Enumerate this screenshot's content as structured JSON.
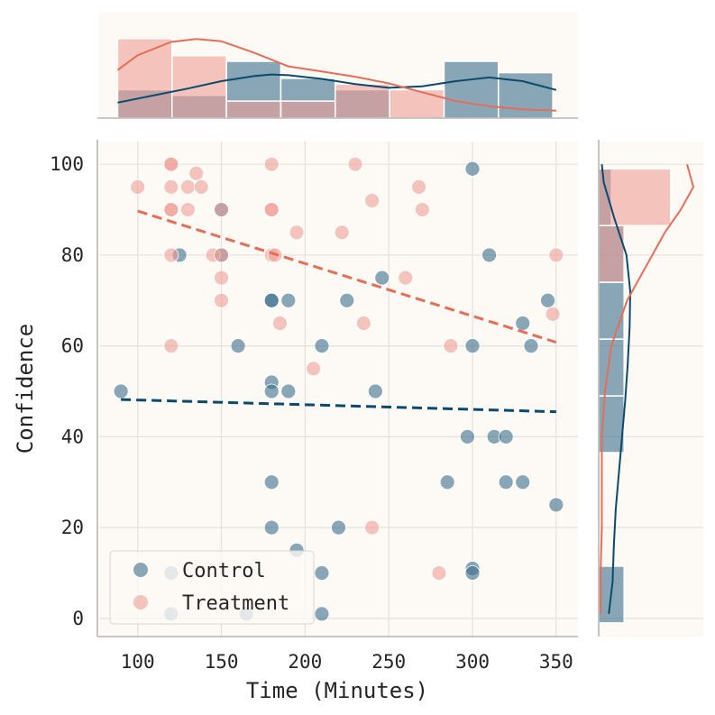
{
  "chart_data": {
    "type": "scatter",
    "subtype": "jointplot",
    "xlabel": "Time (Minutes)",
    "ylabel": "Confidence",
    "xlim": [
      77,
      363
    ],
    "ylim": [
      -4,
      105
    ],
    "x_ticks": [
      100,
      150,
      200,
      250,
      300,
      350
    ],
    "y_ticks": [
      0,
      20,
      40,
      60,
      80,
      100
    ],
    "grid": true,
    "legend_position": "lower-left",
    "colors": {
      "background": "#fdf9f5",
      "grid": "#e4e1de",
      "spine": "#b5b5b5"
    },
    "series": [
      {
        "name": "Control",
        "color": "#3c6e8c",
        "line_color": "#0b4a6d",
        "points": [
          [
            90,
            50
          ],
          [
            120,
            10
          ],
          [
            120,
            1
          ],
          [
            125,
            80
          ],
          [
            150,
            90
          ],
          [
            150,
            80
          ],
          [
            160,
            60
          ],
          [
            165,
            1
          ],
          [
            180,
            70
          ],
          [
            180,
            70
          ],
          [
            180,
            52
          ],
          [
            180,
            50
          ],
          [
            180,
            30
          ],
          [
            180,
            20
          ],
          [
            190,
            70
          ],
          [
            190,
            50
          ],
          [
            195,
            15
          ],
          [
            210,
            60
          ],
          [
            210,
            10
          ],
          [
            210,
            1
          ],
          [
            220,
            20
          ],
          [
            225,
            70
          ],
          [
            242,
            50
          ],
          [
            246,
            75
          ],
          [
            285,
            30
          ],
          [
            297,
            40
          ],
          [
            300,
            99
          ],
          [
            300,
            60
          ],
          [
            300,
            11
          ],
          [
            300,
            10
          ],
          [
            310,
            80
          ],
          [
            313,
            40
          ],
          [
            320,
            40
          ],
          [
            320,
            30
          ],
          [
            330,
            65
          ],
          [
            330,
            30
          ],
          [
            335,
            60
          ],
          [
            345,
            70
          ],
          [
            350,
            25
          ]
        ],
        "trend": {
          "x": [
            90,
            350
          ],
          "y": [
            48.2,
            45.5
          ]
        },
        "top_hist": {
          "edges": [
            88,
            120.5,
            153,
            185.5,
            218,
            250.5,
            283,
            315.5,
            348
          ],
          "counts": [
            5,
            4,
            10,
            7,
            5,
            0,
            10,
            8
          ]
        },
        "top_kde": {
          "x": [
            88,
            110,
            130,
            150,
            170,
            180,
            190,
            210,
            230,
            250,
            270,
            290,
            310,
            330,
            350
          ],
          "y": [
            2.1,
            3.1,
            4.0,
            5.0,
            5.7,
            5.9,
            5.8,
            5.3,
            4.6,
            4.1,
            4.3,
            5.0,
            5.5,
            5.0,
            3.8
          ]
        },
        "right_hist": {
          "edges": [
            -1,
            11.5,
            24,
            36.5,
            49,
            61.5,
            74,
            86.5,
            99
          ],
          "counts": [
            6,
            0,
            0,
            6,
            6,
            6,
            6,
            3
          ]
        },
        "right_kde": {
          "y": [
            1,
            8,
            16,
            24,
            32,
            40,
            48,
            56,
            64,
            72,
            80,
            88,
            96,
            100
          ],
          "x": [
            1.6,
            2.2,
            2.4,
            2.7,
            3.2,
            3.7,
            4.2,
            4.6,
            4.9,
            5.0,
            4.4,
            2.5,
            0.8,
            0.5
          ]
        }
      },
      {
        "name": "Treatment",
        "color": "#ef9e96",
        "line_color": "#e56e58",
        "points": [
          [
            100,
            95
          ],
          [
            120,
            100
          ],
          [
            120,
            100
          ],
          [
            120,
            95
          ],
          [
            120,
            90
          ],
          [
            120,
            90
          ],
          [
            120,
            80
          ],
          [
            120,
            60
          ],
          [
            130,
            95
          ],
          [
            130,
            90
          ],
          [
            135,
            98
          ],
          [
            138,
            95
          ],
          [
            145,
            80
          ],
          [
            150,
            90
          ],
          [
            150,
            80
          ],
          [
            150,
            75
          ],
          [
            150,
            70
          ],
          [
            180,
            100
          ],
          [
            180,
            90
          ],
          [
            180,
            90
          ],
          [
            180,
            80
          ],
          [
            182,
            80
          ],
          [
            185,
            65
          ],
          [
            195,
            85
          ],
          [
            205,
            55
          ],
          [
            222,
            85
          ],
          [
            230,
            100
          ],
          [
            235,
            65
          ],
          [
            240,
            92
          ],
          [
            240,
            20
          ],
          [
            260,
            75
          ],
          [
            268,
            95
          ],
          [
            270,
            90
          ],
          [
            280,
            10
          ],
          [
            287,
            60
          ],
          [
            348,
            67
          ],
          [
            350,
            80
          ]
        ],
        "trend": {
          "x": [
            100,
            350
          ],
          "y": [
            89.7,
            60.8
          ]
        },
        "top_hist": {
          "edges": [
            88,
            120.5,
            153,
            185.5,
            218,
            250.5,
            283,
            315.5,
            348
          ],
          "counts": [
            14,
            11,
            3,
            3,
            6,
            5,
            0,
            0
          ]
        },
        "top_kde": {
          "x": [
            88,
            100,
            120,
            135,
            150,
            170,
            190,
            210,
            230,
            250,
            270,
            290,
            310,
            330,
            350
          ],
          "y": [
            6.5,
            8.5,
            10.3,
            10.7,
            10.4,
            8.8,
            7.0,
            6.3,
            5.6,
            4.7,
            3.5,
            2.3,
            1.6,
            1.2,
            1.0
          ]
        },
        "right_hist": {
          "edges": [
            74,
            86.5,
            99
          ],
          "counts": [
            6,
            17
          ]
        },
        "right_kde": {
          "y": [
            1,
            10,
            20,
            30,
            40,
            50,
            60,
            70,
            80,
            85,
            90,
            95,
            100
          ],
          "x": [
            0.3,
            0.3,
            0.5,
            0.5,
            0.5,
            1.0,
            2.0,
            4.5,
            8.5,
            10.5,
            13.0,
            15.0,
            14.0
          ]
        }
      }
    ]
  }
}
